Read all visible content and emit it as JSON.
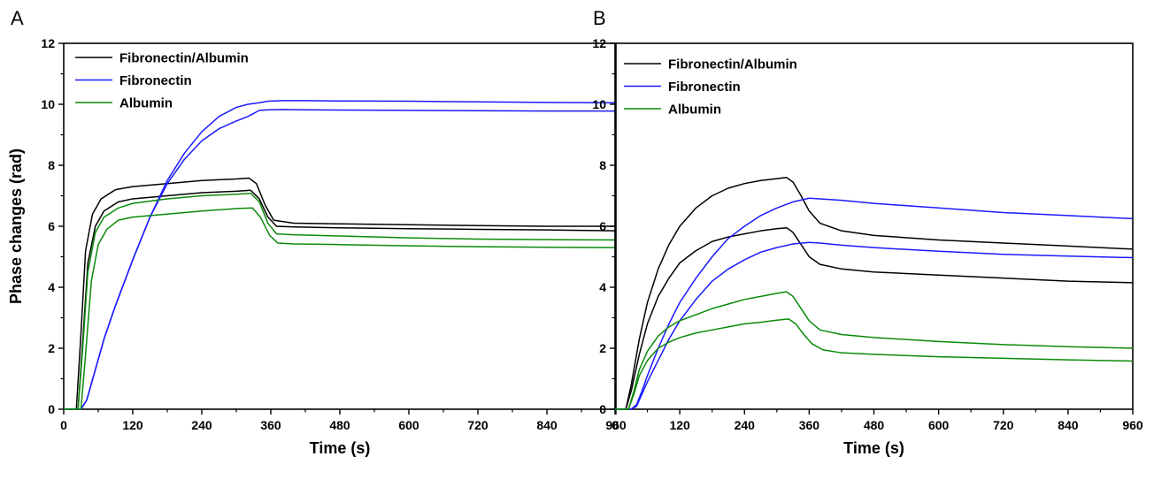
{
  "colors": {
    "Fibronectin/Albumin": "#000000",
    "Fibronectin": "#1a1aff",
    "Albumin": "#0a8a0a"
  },
  "chart_data": [
    {
      "panel_label": "A",
      "type": "line",
      "xlabel": "Time (s)",
      "ylabel": "Phase changes (rad)",
      "xlim": [
        0,
        960
      ],
      "ylim": [
        0,
        12
      ],
      "xticks": [
        0,
        120,
        240,
        360,
        480,
        600,
        720,
        840,
        960
      ],
      "yticks": [
        0,
        2,
        4,
        6,
        8,
        10,
        12
      ],
      "grid": false,
      "legend": {
        "position": "top-left",
        "entries": [
          "Fibronectin/Albumin",
          "Fibronectin",
          "Albumin"
        ]
      },
      "series": [
        {
          "name": "Fibronectin/Albumin",
          "x": [
            0,
            22,
            30,
            38,
            50,
            65,
            90,
            120,
            180,
            240,
            300,
            322,
            335,
            350,
            365,
            400,
            480,
            600,
            720,
            840,
            960
          ],
          "y": [
            0,
            0,
            2.5,
            5.2,
            6.4,
            6.9,
            7.2,
            7.3,
            7.4,
            7.5,
            7.55,
            7.58,
            7.4,
            6.7,
            6.2,
            6.1,
            6.08,
            6.05,
            6.02,
            6.0,
            6.0
          ]
        },
        {
          "name": "Fibronectin/Albumin",
          "x": [
            0,
            25,
            33,
            42,
            55,
            70,
            95,
            120,
            180,
            240,
            300,
            325,
            340,
            355,
            370,
            400,
            480,
            600,
            720,
            840,
            960
          ],
          "y": [
            0,
            0,
            2.2,
            4.8,
            6.0,
            6.5,
            6.8,
            6.9,
            7.0,
            7.1,
            7.15,
            7.18,
            6.9,
            6.3,
            6.0,
            5.98,
            5.95,
            5.92,
            5.9,
            5.88,
            5.85
          ]
        },
        {
          "name": "Fibronectin",
          "x": [
            0,
            30,
            40,
            55,
            70,
            90,
            120,
            150,
            180,
            210,
            240,
            270,
            300,
            320,
            340,
            355,
            380,
            420,
            480,
            600,
            720,
            840,
            960
          ],
          "y": [
            0,
            0,
            0.3,
            1.3,
            2.3,
            3.4,
            4.9,
            6.3,
            7.5,
            8.4,
            9.1,
            9.6,
            9.9,
            10.0,
            10.05,
            10.1,
            10.12,
            10.12,
            10.11,
            10.1,
            10.08,
            10.06,
            10.05
          ]
        },
        {
          "name": "Fibronectin",
          "x": [
            0,
            30,
            40,
            55,
            70,
            90,
            120,
            150,
            180,
            210,
            240,
            270,
            300,
            320,
            340,
            355,
            380,
            420,
            480,
            600,
            720,
            840,
            960
          ],
          "y": [
            0,
            0,
            0.3,
            1.3,
            2.3,
            3.4,
            4.9,
            6.3,
            7.4,
            8.2,
            8.8,
            9.2,
            9.45,
            9.6,
            9.8,
            9.82,
            9.83,
            9.82,
            9.81,
            9.8,
            9.79,
            9.78,
            9.78
          ]
        },
        {
          "name": "Albumin",
          "x": [
            0,
            25,
            33,
            42,
            55,
            70,
            95,
            120,
            180,
            240,
            300,
            325,
            340,
            355,
            370,
            400,
            480,
            600,
            720,
            840,
            960
          ],
          "y": [
            0,
            0,
            2.0,
            4.5,
            5.8,
            6.3,
            6.6,
            6.75,
            6.9,
            7.0,
            7.05,
            7.08,
            6.8,
            6.1,
            5.75,
            5.72,
            5.68,
            5.62,
            5.58,
            5.56,
            5.55
          ]
        },
        {
          "name": "Albumin",
          "x": [
            0,
            30,
            38,
            48,
            60,
            75,
            95,
            120,
            180,
            240,
            300,
            328,
            342,
            358,
            372,
            400,
            480,
            600,
            720,
            840,
            960
          ],
          "y": [
            0,
            0,
            1.8,
            4.2,
            5.4,
            5.9,
            6.2,
            6.3,
            6.4,
            6.5,
            6.58,
            6.6,
            6.3,
            5.7,
            5.45,
            5.42,
            5.4,
            5.36,
            5.33,
            5.31,
            5.3
          ]
        }
      ]
    },
    {
      "panel_label": "B",
      "type": "line",
      "xlabel": "Time (s)",
      "ylabel": "",
      "xlim": [
        0,
        960
      ],
      "ylim": [
        0,
        12
      ],
      "xticks": [
        0,
        120,
        240,
        360,
        480,
        600,
        720,
        840,
        960
      ],
      "yticks": [
        0,
        2,
        4,
        6,
        8,
        10,
        12
      ],
      "grid": false,
      "legend": {
        "position": "top-left",
        "entries": [
          "Fibronectin/Albumin",
          "Fibronectin",
          "Albumin"
        ]
      },
      "series": [
        {
          "name": "Fibronectin/Albumin",
          "x": [
            0,
            20,
            30,
            45,
            60,
            80,
            100,
            120,
            150,
            180,
            210,
            240,
            270,
            300,
            318,
            330,
            345,
            360,
            380,
            420,
            480,
            600,
            720,
            840,
            960
          ],
          "y": [
            0,
            0,
            0.8,
            2.3,
            3.5,
            4.6,
            5.4,
            6.0,
            6.6,
            7.0,
            7.25,
            7.4,
            7.5,
            7.56,
            7.6,
            7.45,
            7.0,
            6.5,
            6.1,
            5.85,
            5.7,
            5.55,
            5.45,
            5.35,
            5.25
          ]
        },
        {
          "name": "Fibronectin/Albumin",
          "x": [
            0,
            20,
            30,
            45,
            60,
            80,
            100,
            120,
            150,
            180,
            210,
            240,
            270,
            300,
            318,
            330,
            345,
            360,
            380,
            420,
            480,
            600,
            720,
            840,
            960
          ],
          "y": [
            0,
            0,
            0.6,
            1.8,
            2.8,
            3.7,
            4.3,
            4.8,
            5.2,
            5.5,
            5.65,
            5.75,
            5.85,
            5.92,
            5.95,
            5.8,
            5.4,
            5.0,
            4.75,
            4.6,
            4.5,
            4.4,
            4.3,
            4.2,
            4.15
          ]
        },
        {
          "name": "Fibronectin",
          "x": [
            0,
            30,
            40,
            50,
            60,
            80,
            100,
            120,
            150,
            180,
            210,
            240,
            270,
            300,
            330,
            360,
            380,
            420,
            480,
            600,
            720,
            840,
            960
          ],
          "y": [
            0,
            0,
            0.15,
            0.6,
            1.1,
            2.0,
            2.8,
            3.5,
            4.3,
            5.0,
            5.6,
            6.0,
            6.35,
            6.6,
            6.8,
            6.92,
            6.9,
            6.85,
            6.75,
            6.6,
            6.45,
            6.35,
            6.25
          ]
        },
        {
          "name": "Fibronectin",
          "x": [
            0,
            30,
            40,
            50,
            60,
            80,
            100,
            120,
            150,
            180,
            210,
            240,
            270,
            300,
            330,
            360,
            380,
            420,
            480,
            600,
            720,
            840,
            960
          ],
          "y": [
            0,
            0,
            0.1,
            0.5,
            0.9,
            1.6,
            2.3,
            2.9,
            3.6,
            4.2,
            4.6,
            4.9,
            5.15,
            5.3,
            5.42,
            5.47,
            5.45,
            5.38,
            5.3,
            5.18,
            5.08,
            5.02,
            4.97
          ]
        },
        {
          "name": "Albumin",
          "x": [
            0,
            25,
            35,
            45,
            60,
            80,
            100,
            120,
            150,
            180,
            210,
            240,
            270,
            300,
            318,
            330,
            345,
            360,
            380,
            420,
            480,
            600,
            720,
            840,
            960
          ],
          "y": [
            0,
            0,
            0.6,
            1.3,
            1.9,
            2.4,
            2.7,
            2.9,
            3.1,
            3.3,
            3.45,
            3.6,
            3.7,
            3.8,
            3.85,
            3.7,
            3.3,
            2.9,
            2.6,
            2.45,
            2.35,
            2.22,
            2.12,
            2.05,
            2.0
          ]
        },
        {
          "name": "Albumin",
          "x": [
            0,
            25,
            35,
            45,
            60,
            80,
            100,
            120,
            150,
            180,
            210,
            240,
            270,
            300,
            322,
            335,
            350,
            365,
            385,
            420,
            480,
            600,
            720,
            840,
            960
          ],
          "y": [
            0,
            0,
            0.5,
            1.1,
            1.6,
            2.0,
            2.2,
            2.35,
            2.5,
            2.6,
            2.7,
            2.8,
            2.85,
            2.92,
            2.96,
            2.8,
            2.45,
            2.15,
            1.95,
            1.85,
            1.8,
            1.72,
            1.67,
            1.62,
            1.58
          ]
        }
      ]
    }
  ]
}
